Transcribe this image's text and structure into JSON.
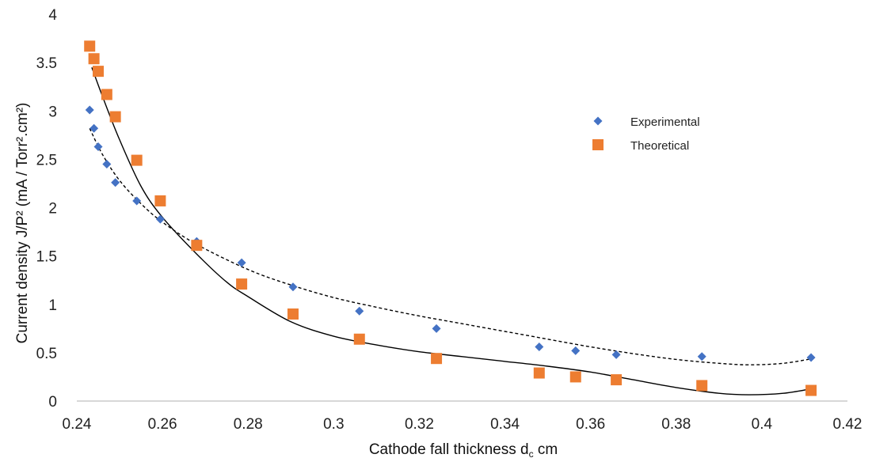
{
  "chart_data": {
    "type": "scatter",
    "title": "",
    "xlabel": "Cathode fall thickness d",
    "xlabel_sub": "c",
    "xlabel_unit": " cm",
    "ylabel": "Current density  J/P²  (mA / Torr².cm²)",
    "xlim": [
      0.24,
      0.42
    ],
    "ylim": [
      0,
      4
    ],
    "x_ticks": [
      "0.24",
      "0.26",
      "0.28",
      "0.3",
      "0.32",
      "0.34",
      "0.36",
      "0.38",
      "0.4",
      "0.42"
    ],
    "y_ticks": [
      "0",
      "0.5",
      "1",
      "1.5",
      "2",
      "2.5",
      "3",
      "3.5",
      "4"
    ],
    "grid": false,
    "legend_position": "top-right",
    "series": [
      {
        "name": "Experimental",
        "marker": "diamond",
        "color": "#4472C4",
        "trendline": "dashed",
        "points": [
          [
            0.243,
            3.01
          ],
          [
            0.244,
            2.82
          ],
          [
            0.245,
            2.63
          ],
          [
            0.247,
            2.45
          ],
          [
            0.249,
            2.26
          ],
          [
            0.254,
            2.07
          ],
          [
            0.2595,
            1.88
          ],
          [
            0.268,
            1.65
          ],
          [
            0.2785,
            1.43
          ],
          [
            0.2905,
            1.18
          ],
          [
            0.306,
            0.93
          ],
          [
            0.324,
            0.75
          ],
          [
            0.348,
            0.56
          ],
          [
            0.3565,
            0.52
          ],
          [
            0.366,
            0.48
          ],
          [
            0.386,
            0.46
          ],
          [
            0.4115,
            0.45
          ]
        ],
        "trend": [
          [
            0.243,
            2.82
          ],
          [
            0.246,
            2.55
          ],
          [
            0.25,
            2.28
          ],
          [
            0.255,
            2.04
          ],
          [
            0.26,
            1.85
          ],
          [
            0.268,
            1.62
          ],
          [
            0.28,
            1.36
          ],
          [
            0.29,
            1.2
          ],
          [
            0.3,
            1.07
          ],
          [
            0.31,
            0.97
          ],
          [
            0.32,
            0.88
          ],
          [
            0.33,
            0.8
          ],
          [
            0.34,
            0.72
          ],
          [
            0.35,
            0.64
          ],
          [
            0.36,
            0.56
          ],
          [
            0.37,
            0.49
          ],
          [
            0.38,
            0.43
          ],
          [
            0.39,
            0.39
          ],
          [
            0.397,
            0.375
          ],
          [
            0.405,
            0.39
          ],
          [
            0.412,
            0.44
          ]
        ]
      },
      {
        "name": "Theoretical",
        "marker": "square",
        "color": "#ED7D31",
        "trendline": "solid",
        "points": [
          [
            0.243,
            3.67
          ],
          [
            0.244,
            3.54
          ],
          [
            0.245,
            3.41
          ],
          [
            0.247,
            3.17
          ],
          [
            0.249,
            2.94
          ],
          [
            0.254,
            2.49
          ],
          [
            0.2595,
            2.07
          ],
          [
            0.268,
            1.61
          ],
          [
            0.2785,
            1.21
          ],
          [
            0.2905,
            0.9
          ],
          [
            0.306,
            0.64
          ],
          [
            0.324,
            0.44
          ],
          [
            0.348,
            0.29
          ],
          [
            0.3565,
            0.25
          ],
          [
            0.366,
            0.22
          ],
          [
            0.386,
            0.16
          ],
          [
            0.4115,
            0.11
          ]
        ],
        "trend": [
          [
            0.2435,
            3.45
          ],
          [
            0.246,
            3.15
          ],
          [
            0.25,
            2.7
          ],
          [
            0.255,
            2.22
          ],
          [
            0.26,
            1.9
          ],
          [
            0.268,
            1.52
          ],
          [
            0.275,
            1.23
          ],
          [
            0.28,
            1.08
          ],
          [
            0.29,
            0.82
          ],
          [
            0.3,
            0.67
          ],
          [
            0.31,
            0.58
          ],
          [
            0.32,
            0.51
          ],
          [
            0.33,
            0.46
          ],
          [
            0.34,
            0.41
          ],
          [
            0.35,
            0.36
          ],
          [
            0.36,
            0.3
          ],
          [
            0.37,
            0.22
          ],
          [
            0.38,
            0.14
          ],
          [
            0.39,
            0.08
          ],
          [
            0.397,
            0.065
          ],
          [
            0.405,
            0.08
          ],
          [
            0.412,
            0.13
          ]
        ]
      }
    ]
  }
}
